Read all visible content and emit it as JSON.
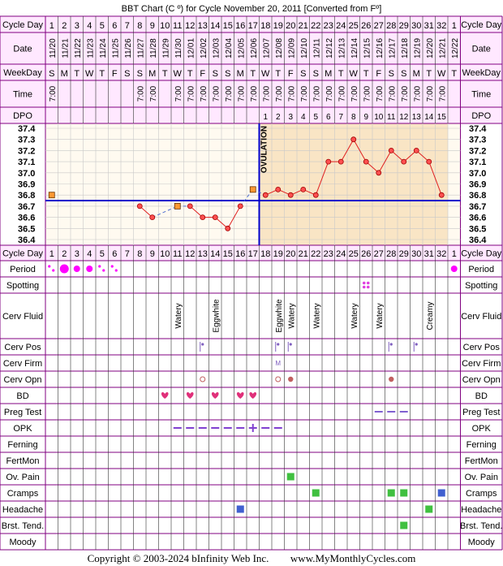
{
  "title": "BBT Chart (C º) for Cycle November 20, 2011  [Converted from Fº]",
  "footer": {
    "copyright": "Copyright © 2003-2024 bInfinity Web Inc.",
    "site": "www.MyMonthlyCycles.com"
  },
  "colors": {
    "frame": "#800080",
    "header_bg": "#ffe8ff",
    "chart_bg": "#fffaf0",
    "luteal_bg": "#f9e5c5",
    "temp_line": "#e02020",
    "coverline": "#0000cc",
    "period": "#ff00ff",
    "spotting": "#e040e0",
    "heart": "#e0307a",
    "opk": "#8040d0",
    "box_green": "#40c040",
    "box_blue": "#4060d0"
  },
  "row_labels": {
    "cycle_day": "Cycle Day",
    "date": "Date",
    "weekday": "WeekDay",
    "time": "Time",
    "dpo": "DPO",
    "period": "Period",
    "spotting": "Spotting",
    "cerv_fluid": "Cerv Fluid",
    "cerv_pos": "Cerv Pos",
    "cerv_firm": "Cerv Firm",
    "cerv_opn": "Cerv Opn",
    "bd": "BD",
    "preg_test": "Preg Test",
    "opk": "OPK",
    "ferning": "Ferning",
    "fertmon": "FertMon",
    "ov_pain": "Ov. Pain",
    "cramps": "Cramps",
    "headache": "Headache",
    "brst_tend": "Brst. Tend.",
    "moody": "Moody"
  },
  "chart_data": {
    "type": "line",
    "title": "BBT Chart (C º) for Cycle November 20, 2011  [Converted from Fº]",
    "cycle_days": [
      "1",
      "2",
      "3",
      "4",
      "5",
      "6",
      "7",
      "8",
      "9",
      "10",
      "11",
      "12",
      "13",
      "14",
      "15",
      "16",
      "17",
      "18",
      "19",
      "20",
      "21",
      "22",
      "23",
      "24",
      "25",
      "26",
      "27",
      "28",
      "29",
      "30",
      "31",
      "32",
      "1"
    ],
    "dates": [
      "11/20",
      "11/21",
      "11/22",
      "11/23",
      "11/24",
      "11/25",
      "11/26",
      "11/27",
      "11/28",
      "11/29",
      "11/30",
      "12/01",
      "12/02",
      "12/03",
      "12/04",
      "12/05",
      "12/06",
      "12/07",
      "12/08",
      "12/09",
      "12/10",
      "12/11",
      "12/12",
      "12/13",
      "12/14",
      "12/15",
      "12/16",
      "12/17",
      "12/18",
      "12/19",
      "12/20",
      "12/21",
      "12/22"
    ],
    "weekdays": [
      "S",
      "M",
      "T",
      "W",
      "T",
      "F",
      "S",
      "S",
      "M",
      "T",
      "W",
      "T",
      "F",
      "S",
      "S",
      "M",
      "T",
      "W",
      "T",
      "F",
      "S",
      "S",
      "M",
      "T",
      "W",
      "T",
      "F",
      "S",
      "S",
      "M",
      "T",
      "W",
      "T"
    ],
    "times": [
      "7:00",
      "",
      "",
      "",
      "",
      "",
      "",
      "7:00",
      "7:00",
      "",
      "7:00",
      "7:00",
      "7:00",
      "7:00",
      "7:00",
      "7:00",
      "7:00",
      "7:00",
      "7:00",
      "7:00",
      "7:00",
      "7:00",
      "7:00",
      "7:00",
      "7:00",
      "7:00",
      "7:00",
      "7:00",
      "7:00",
      "7:00",
      "7:00",
      "7:00",
      ""
    ],
    "dpo": [
      "",
      "",
      "",
      "",
      "",
      "",
      "",
      "",
      "",
      "",
      "",
      "",
      "",
      "",
      "",
      "",
      "",
      "1",
      "2",
      "3",
      "4",
      "5",
      "6",
      "7",
      "8",
      "9",
      "10",
      "11",
      "12",
      "13",
      "14",
      "15",
      ""
    ],
    "y_ticks": [
      "37.4",
      "37.3",
      "37.2",
      "37.1",
      "37.0",
      "36.9",
      "36.8",
      "36.7",
      "36.6",
      "36.5",
      "36.4"
    ],
    "ylim": [
      36.4,
      37.4
    ],
    "coverline": 36.75,
    "ovulation_day": 17,
    "ovulation_label": "OVULATION",
    "series": [
      {
        "values": [
          36.8,
          null,
          null,
          null,
          null,
          null,
          null,
          36.7,
          36.6,
          null,
          36.7,
          36.7,
          36.6,
          36.6,
          36.5,
          36.7,
          36.85,
          36.8,
          36.85,
          36.8,
          36.85,
          36.8,
          37.1,
          37.1,
          37.3,
          37.1,
          37.0,
          37.2,
          37.1,
          37.2,
          37.1,
          36.8,
          null
        ],
        "open_markers": [
          1,
          11,
          17
        ]
      }
    ],
    "period": [
      "light",
      "heavy",
      "medium",
      "medium",
      "light",
      "light",
      "",
      "",
      "",
      "",
      "",
      "",
      "",
      "",
      "",
      "",
      "",
      "",
      "",
      "",
      "",
      "",
      "",
      "",
      "",
      "",
      "",
      "",
      "",
      "",
      "",
      "",
      "medium"
    ],
    "spotting_days": [
      26
    ],
    "cerv_fluid": {
      "11": "Watery",
      "14": "Eggwhite",
      "19": "Eggwhite",
      "20": "Watery",
      "22": "Watery",
      "25": "Watery",
      "27": "Watery",
      "31": "Creamy"
    },
    "cerv_pos": [
      13,
      19,
      20,
      28,
      30
    ],
    "cerv_firm": {
      "19": "M"
    },
    "cerv_opn": {
      "13": "open",
      "19": "open",
      "20": "filled",
      "28": "filled"
    },
    "bd_days": [
      10,
      12,
      14,
      16,
      17
    ],
    "preg_test_days": [
      27,
      28,
      29
    ],
    "opk": {
      "11": "-",
      "12": "-",
      "13": "-",
      "14": "-",
      "15": "-",
      "16": "-",
      "17": "+",
      "18": "-",
      "19": "-"
    },
    "ov_pain_days": [
      20
    ],
    "cramps": {
      "22": "green",
      "28": "green",
      "29": "green",
      "32": "blue"
    },
    "headache": {
      "16": "blue",
      "31": "green"
    },
    "brst_tend_days": [
      29
    ]
  }
}
